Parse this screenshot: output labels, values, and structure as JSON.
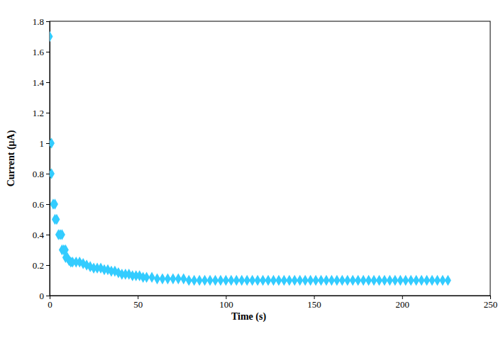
{
  "chart_data": {
    "type": "scatter",
    "x_label": "Time (s)",
    "y_label": "Current (μA)",
    "color": "#33ccff",
    "marker": "diamond",
    "grid": false,
    "xlim": [
      0,
      250
    ],
    "xticks": [
      0,
      50,
      100,
      150,
      200,
      250
    ],
    "ylim": [
      0,
      1.8
    ],
    "yticks": [
      0,
      0.2,
      0.4,
      0.6,
      0.8,
      1,
      1.2,
      1.4,
      1.6,
      1.8
    ],
    "x": [
      0,
      1,
      1,
      2,
      3,
      3,
      4,
      5,
      6,
      7,
      7,
      8,
      9,
      9,
      10,
      11,
      12,
      13,
      15,
      17,
      19,
      21,
      23,
      25,
      27,
      29,
      31,
      33,
      35,
      37,
      39,
      41,
      43,
      45,
      47,
      49,
      51,
      53,
      55,
      58,
      61,
      64,
      67,
      70,
      73,
      76,
      79,
      82,
      85,
      88,
      91,
      94,
      97,
      100,
      103,
      106,
      109,
      112,
      115,
      118,
      121,
      124,
      127,
      130,
      133,
      136,
      139,
      142,
      145,
      148,
      151,
      154,
      157,
      160,
      163,
      166,
      169,
      172,
      175,
      178,
      181,
      184,
      187,
      190,
      193,
      196,
      199,
      202,
      205,
      208,
      211,
      214,
      217,
      220,
      223,
      226
    ],
    "values": [
      1.7,
      1.0,
      0.8,
      0.6,
      0.6,
      0.5,
      0.5,
      0.4,
      0.4,
      0.4,
      0.3,
      0.3,
      0.3,
      0.25,
      0.25,
      0.23,
      0.22,
      0.22,
      0.22,
      0.22,
      0.21,
      0.2,
      0.19,
      0.18,
      0.18,
      0.18,
      0.17,
      0.17,
      0.16,
      0.16,
      0.15,
      0.14,
      0.14,
      0.14,
      0.13,
      0.13,
      0.13,
      0.12,
      0.12,
      0.12,
      0.11,
      0.11,
      0.11,
      0.11,
      0.11,
      0.11,
      0.1,
      0.1,
      0.1,
      0.1,
      0.1,
      0.1,
      0.1,
      0.1,
      0.1,
      0.1,
      0.1,
      0.1,
      0.1,
      0.1,
      0.1,
      0.1,
      0.1,
      0.1,
      0.1,
      0.1,
      0.1,
      0.1,
      0.1,
      0.1,
      0.1,
      0.1,
      0.1,
      0.1,
      0.1,
      0.1,
      0.1,
      0.1,
      0.1,
      0.1,
      0.1,
      0.1,
      0.1,
      0.1,
      0.1,
      0.1,
      0.1,
      0.1,
      0.1,
      0.1,
      0.1,
      0.1,
      0.1,
      0.1,
      0.1,
      0.1
    ]
  }
}
